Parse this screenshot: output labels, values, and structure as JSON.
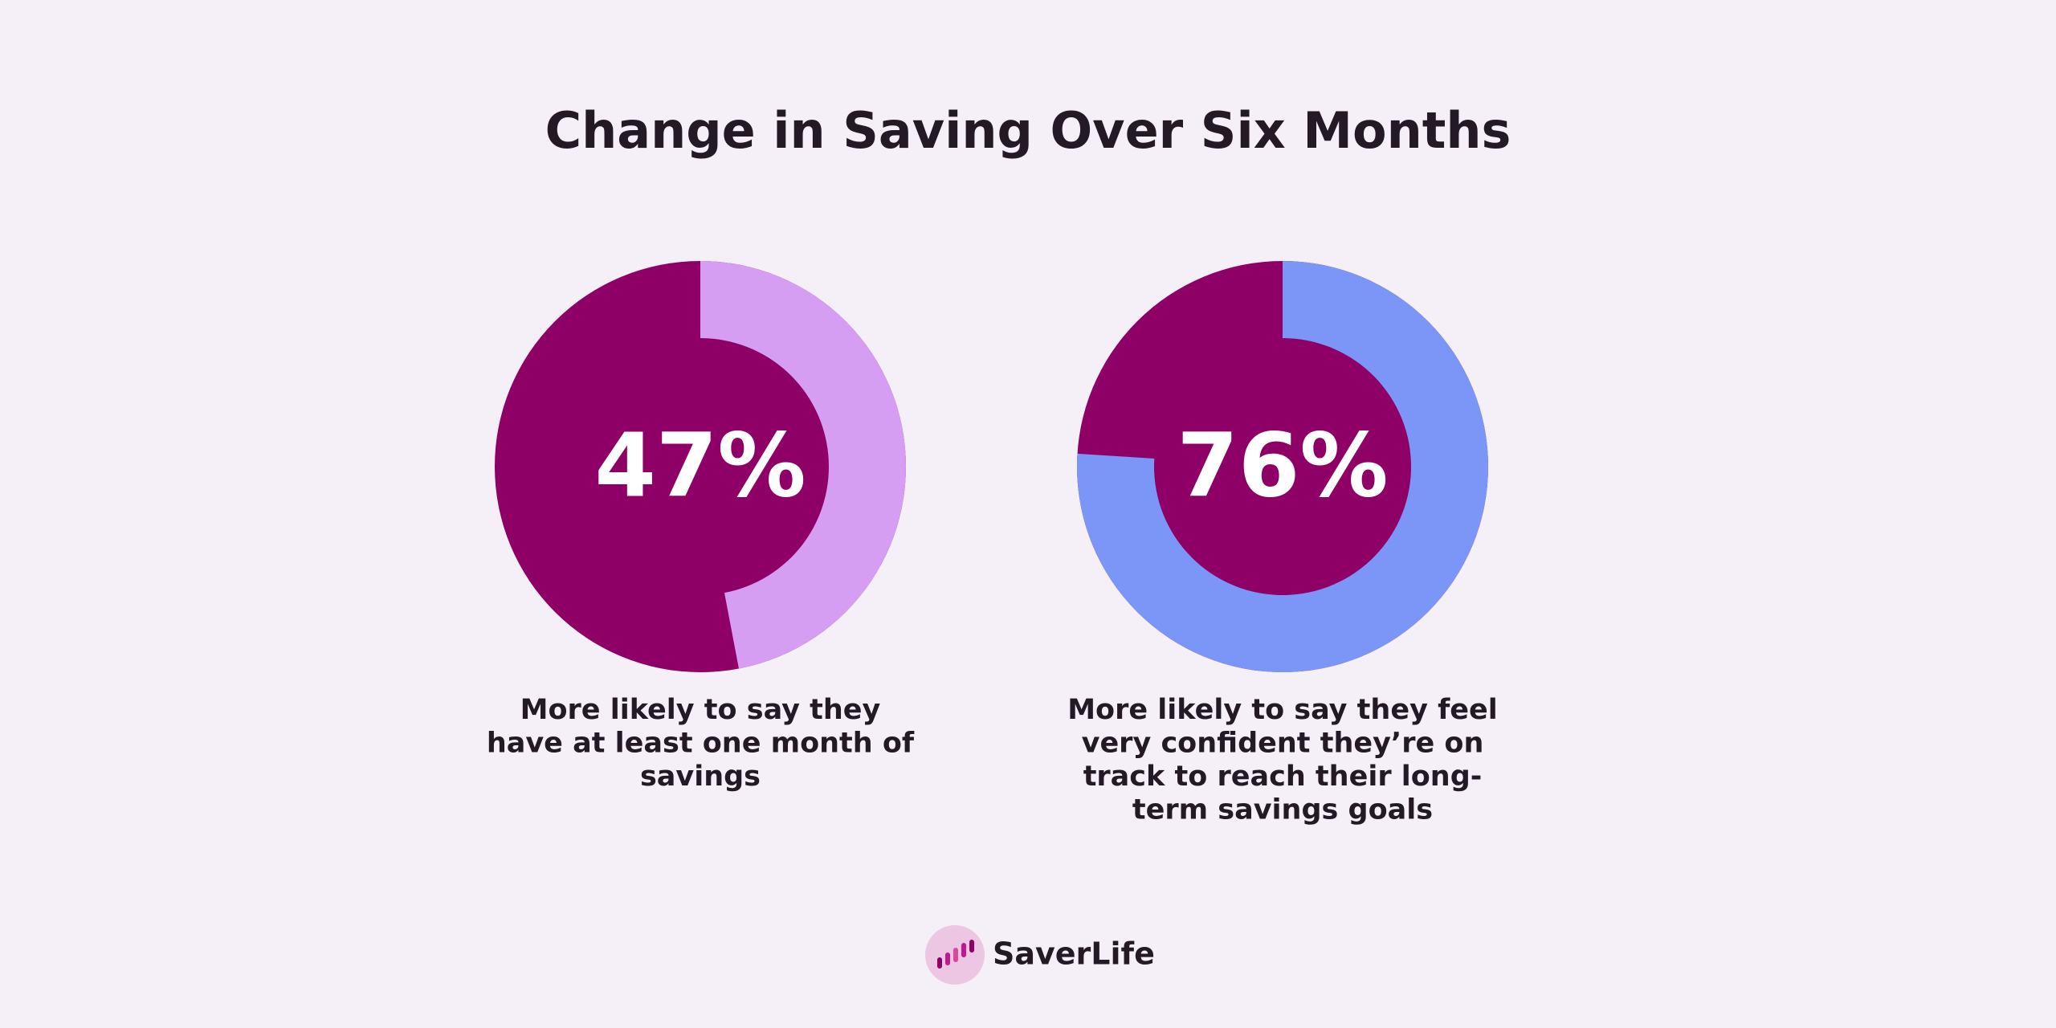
{
  "title": "Change in Saving Over Six Months",
  "chart_data": [
    {
      "type": "donut",
      "values": [
        47
      ],
      "value_labels": [
        "47%"
      ],
      "color": "#d59ef2",
      "base_color": "#8f0066",
      "caption": [
        "More likely to say they",
        "have at least one month of",
        "savings"
      ]
    },
    {
      "type": "donut",
      "values": [
        76
      ],
      "value_labels": [
        "76%"
      ],
      "color": "#7b96f7",
      "base_color": "#8f0066",
      "caption": [
        "More likely to say they feel",
        "very confident they’re on",
        "track to reach their long-",
        "term savings goals"
      ]
    }
  ],
  "logo": "SaverLife"
}
